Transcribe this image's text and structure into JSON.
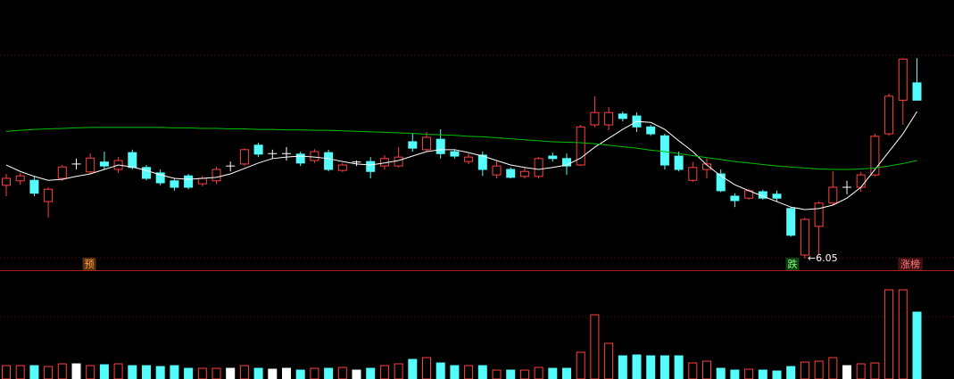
{
  "chart_data": {
    "type": "candlestick",
    "open": [
      7.53,
      7.62,
      7.63,
      7.2,
      7.67,
      7.96,
      7.8,
      8.0,
      7.85,
      8.19,
      7.89,
      7.78,
      7.62,
      7.72,
      7.56,
      7.62,
      7.92,
      7.96,
      8.34,
      8.17,
      8.17,
      8.16,
      8.03,
      8.19,
      7.83,
      8.0,
      8.01,
      7.92,
      7.92,
      8.41,
      8.25,
      8.46,
      8.21,
      8.01,
      8.14,
      7.74,
      7.85,
      7.71,
      7.71,
      8.12,
      8.07,
      7.94,
      8.75,
      8.75,
      8.97,
      8.93,
      8.71,
      8.53,
      8.12,
      7.63,
      7.85,
      7.76,
      7.31,
      7.27,
      7.4,
      7.35,
      7.06,
      6.12,
      6.7,
      7.17,
      7.49,
      7.49,
      7.74,
      8.57,
      9.25,
      9.6
    ],
    "high": [
      7.76,
      7.78,
      7.71,
      7.49,
      7.94,
      8.07,
      8.17,
      8.21,
      8.1,
      8.25,
      7.94,
      7.85,
      7.67,
      7.76,
      7.72,
      7.9,
      8.01,
      8.28,
      8.39,
      8.25,
      8.3,
      8.21,
      8.26,
      8.25,
      7.98,
      8.03,
      8.1,
      8.14,
      8.3,
      8.57,
      8.61,
      8.66,
      8.26,
      8.17,
      8.21,
      8.03,
      7.89,
      7.89,
      8.1,
      8.19,
      8.17,
      8.75,
      9.33,
      9.11,
      9.02,
      9.0,
      8.75,
      8.57,
      8.21,
      8.0,
      8.08,
      7.85,
      7.37,
      7.45,
      7.44,
      7.42,
      7.09,
      6.88,
      7.2,
      7.81,
      7.62,
      7.8,
      8.57,
      9.38,
      10.1,
      10.1
    ],
    "low": [
      7.31,
      7.54,
      7.31,
      6.88,
      7.62,
      7.85,
      7.76,
      7.85,
      7.78,
      7.85,
      7.63,
      7.53,
      7.42,
      7.45,
      7.51,
      7.56,
      7.81,
      7.92,
      8.1,
      8.07,
      8.03,
      7.92,
      7.98,
      7.81,
      7.8,
      7.92,
      7.67,
      7.85,
      7.89,
      8.21,
      8.21,
      8.07,
      8.07,
      7.96,
      7.72,
      7.67,
      7.67,
      7.67,
      7.67,
      8.01,
      7.74,
      7.92,
      8.7,
      8.64,
      8.82,
      8.61,
      8.53,
      7.85,
      7.81,
      7.6,
      7.67,
      7.39,
      7.09,
      7.24,
      7.24,
      7.2,
      6.49,
      6.05,
      6.12,
      7.13,
      7.35,
      7.4,
      7.71,
      8.53,
      8.75,
      9.24
    ],
    "close": [
      7.67,
      7.72,
      7.37,
      7.45,
      7.9,
      7.96,
      8.08,
      7.92,
      8.03,
      7.89,
      7.67,
      7.58,
      7.49,
      7.49,
      7.67,
      7.85,
      7.92,
      8.25,
      8.16,
      8.17,
      8.17,
      7.98,
      8.21,
      7.85,
      7.94,
      8.0,
      7.81,
      8.07,
      8.1,
      8.28,
      8.5,
      8.17,
      8.12,
      8.1,
      7.85,
      7.92,
      7.69,
      7.81,
      8.07,
      8.07,
      7.92,
      8.71,
      9.0,
      9.0,
      8.88,
      8.71,
      8.57,
      7.94,
      7.85,
      7.89,
      7.96,
      7.42,
      7.22,
      7.42,
      7.27,
      7.27,
      6.52,
      6.84,
      7.17,
      7.49,
      7.49,
      7.74,
      8.52,
      9.33,
      10.08,
      9.25
    ],
    "volume": [
      15,
      15,
      15,
      14,
      17,
      17,
      15,
      16,
      17,
      15,
      15,
      14,
      15,
      12,
      12,
      12,
      12,
      15,
      12,
      11,
      12,
      10,
      12,
      12,
      13,
      10,
      12,
      15,
      17,
      22,
      24,
      18,
      15,
      15,
      15,
      10,
      10,
      10,
      13,
      12,
      12,
      30,
      72,
      40,
      26,
      27,
      26,
      26,
      26,
      18,
      20,
      12,
      10,
      11,
      10,
      9,
      14,
      19,
      20,
      24,
      15,
      17,
      18,
      100,
      100,
      75
    ],
    "series": [
      {
        "color": "#ffffff",
        "values": [
          7.94,
          7.81,
          7.71,
          7.63,
          7.65,
          7.71,
          7.76,
          7.85,
          7.94,
          7.9,
          7.83,
          7.74,
          7.67,
          7.65,
          7.67,
          7.69,
          7.76,
          7.87,
          7.98,
          8.07,
          8.1,
          8.12,
          8.1,
          8.07,
          8.01,
          7.96,
          7.94,
          7.98,
          8.03,
          8.12,
          8.21,
          8.25,
          8.25,
          8.19,
          8.12,
          8.03,
          7.94,
          7.89,
          7.85,
          7.89,
          7.94,
          8.08,
          8.3,
          8.48,
          8.66,
          8.82,
          8.8,
          8.66,
          8.43,
          8.21,
          7.94,
          7.72,
          7.54,
          7.42,
          7.31,
          7.2,
          7.09,
          7.04,
          7.06,
          7.13,
          7.27,
          7.49,
          7.85,
          8.21,
          8.57,
          9.02
        ]
      },
      {
        "color": "#00c000",
        "values": [
          8.62,
          8.64,
          8.66,
          8.67,
          8.68,
          8.69,
          8.7,
          8.7,
          8.7,
          8.7,
          8.7,
          8.7,
          8.69,
          8.69,
          8.68,
          8.68,
          8.67,
          8.67,
          8.66,
          8.66,
          8.65,
          8.65,
          8.64,
          8.64,
          8.63,
          8.62,
          8.61,
          8.6,
          8.59,
          8.58,
          8.56,
          8.55,
          8.54,
          8.52,
          8.51,
          8.49,
          8.47,
          8.45,
          8.43,
          8.41,
          8.4,
          8.39,
          8.37,
          8.34,
          8.31,
          8.28,
          8.24,
          8.21,
          8.17,
          8.13,
          8.09,
          8.05,
          8.01,
          7.98,
          7.95,
          7.92,
          7.9,
          7.88,
          7.86,
          7.85,
          7.85,
          7.86,
          7.88,
          7.92,
          7.97,
          8.03
        ]
      }
    ],
    "up_color": "#ff4040",
    "down_color": "#54fcfc",
    "flat_color": "#ffffff",
    "ylim": [
      5.94,
      10.95
    ],
    "volume_lim": [
      0,
      120
    ],
    "annotations": [
      "预",
      "跌",
      "涨榜"
    ],
    "low_label": {
      "value": 6.05,
      "label": "←6.05"
    }
  }
}
